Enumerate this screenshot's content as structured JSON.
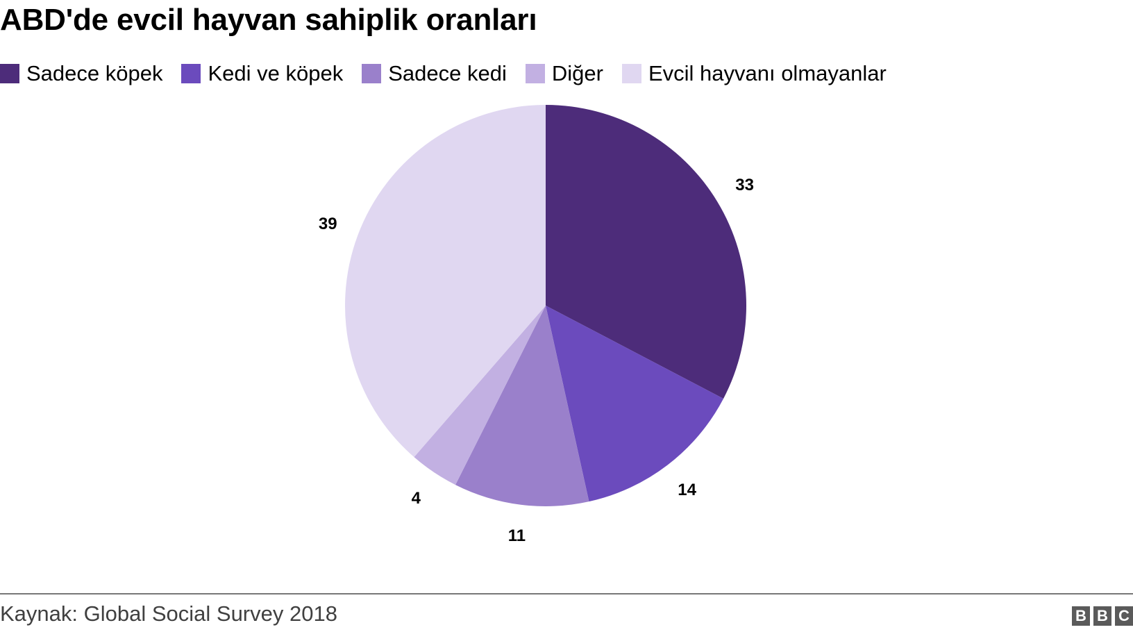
{
  "title": "ABD'de evcil hayvan sahiplik oranları",
  "legend": [
    {
      "label": "Sadece köpek",
      "color": "#4d2c7a"
    },
    {
      "label": "Kedi ve köpek",
      "color": "#6b4bbd"
    },
    {
      "label": "Sadece kedi",
      "color": "#9a80cb"
    },
    {
      "label": "Diğer",
      "color": "#c2b0e2"
    },
    {
      "label": "Evcil hayvanı olmayanlar",
      "color": "#e0d7f1"
    }
  ],
  "footer": {
    "source": "Kaynak: Global Social Survey 2018",
    "logo": [
      "B",
      "B",
      "C"
    ]
  },
  "chart_data": {
    "type": "pie",
    "title": "ABD'de evcil hayvan sahiplik oranları",
    "categories": [
      "Sadece köpek",
      "Kedi ve köpek",
      "Sadece kedi",
      "Diğer",
      "Evcil hayvanı olmayanlar"
    ],
    "values": [
      33,
      14,
      11,
      4,
      39
    ],
    "colors": [
      "#4d2c7a",
      "#6b4bbd",
      "#9a80cb",
      "#c2b0e2",
      "#e0d7f1"
    ],
    "data_labels": [
      "33",
      "14",
      "11",
      "4",
      "39"
    ],
    "start_angle": "12 o'clock, clockwise",
    "legend_position": "top",
    "source": "Kaynak: Global Social Survey 2018"
  }
}
